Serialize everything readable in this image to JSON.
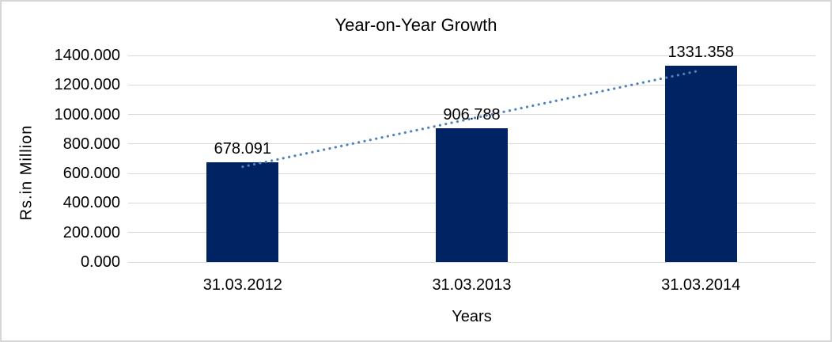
{
  "chart_data": {
    "type": "bar",
    "title": "Year-on-Year Growth",
    "xlabel": "Years",
    "ylabel": "Rs.in Million",
    "categories": [
      "31.03.2012",
      "31.03.2013",
      "31.03.2014"
    ],
    "values": [
      678.091,
      906.788,
      1331.358
    ],
    "data_labels": [
      "678.091",
      "906.788",
      "1331.358"
    ],
    "y_ticks": [
      "0.000",
      "200.000",
      "400.000",
      "600.000",
      "800.000",
      "1000.000",
      "1200.000",
      "1400.000"
    ],
    "ylim": [
      0,
      1400
    ],
    "grid": true,
    "legend": "none",
    "trendline": {
      "type": "linear",
      "style": "dotted",
      "color": "#4f81bd"
    },
    "colors": {
      "bar": "#002364",
      "gridline": "#d9d9d9",
      "text": "#000000",
      "border": "#d6d6d6",
      "background": "#ffffff"
    }
  }
}
